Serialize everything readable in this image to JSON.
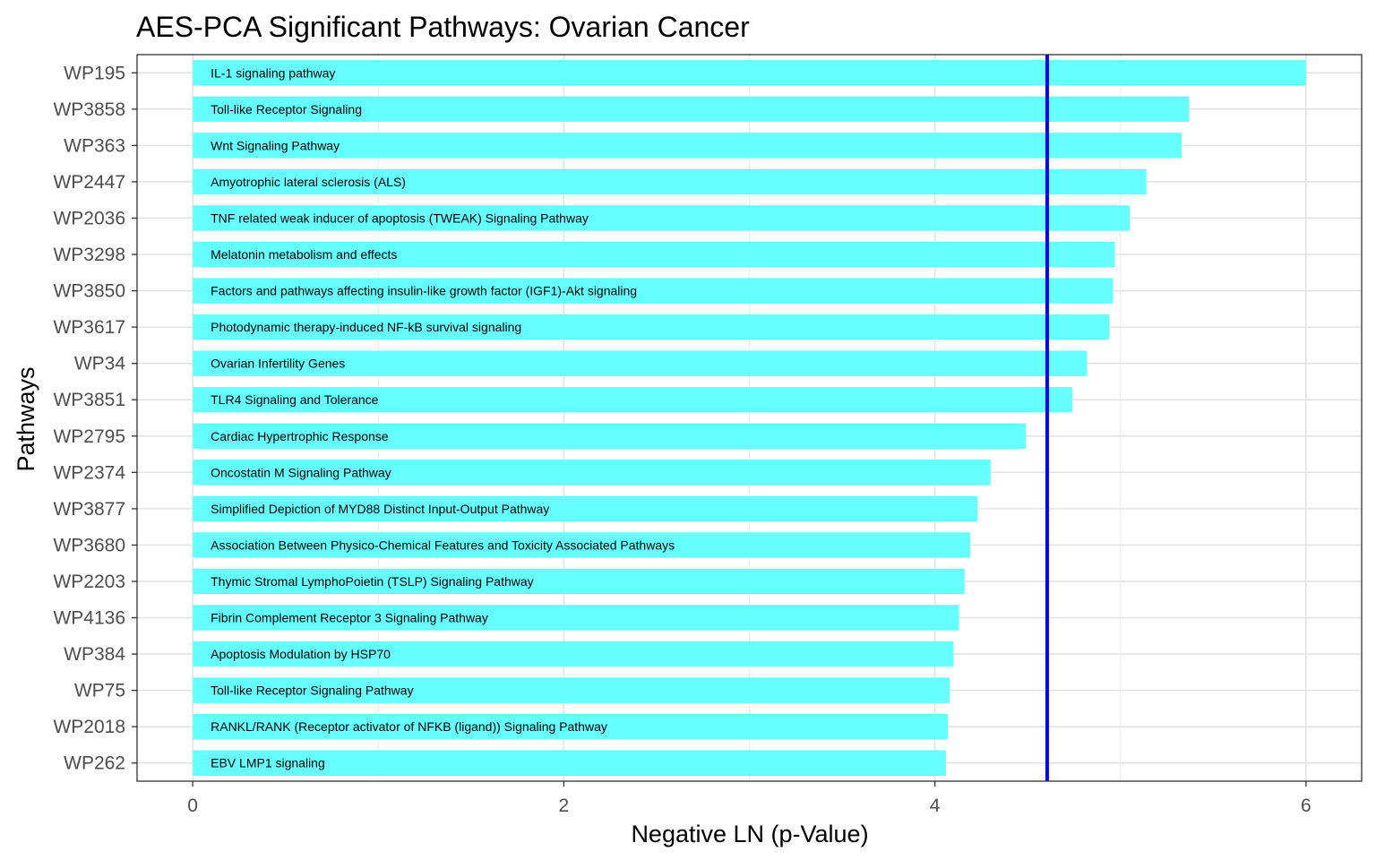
{
  "chart_data": {
    "type": "bar",
    "orientation": "horizontal",
    "title": "AES-PCA Significant Pathways: Ovarian Cancer",
    "xlabel": "Negative LN (p-Value)",
    "ylabel": "Pathways",
    "xlim": [
      -0.3,
      6.3
    ],
    "xticks": [
      "0",
      "2",
      "4",
      "6"
    ],
    "xtick_values": [
      0,
      2,
      4,
      6
    ],
    "grid": true,
    "bar_color": "#66ffff",
    "threshold": {
      "value": 4.605,
      "color": "#0000ff"
    },
    "categories": [
      "WP195",
      "WP3858",
      "WP363",
      "WP2447",
      "WP2036",
      "WP3298",
      "WP3850",
      "WP3617",
      "WP34",
      "WP3851",
      "WP2795",
      "WP2374",
      "WP3877",
      "WP3680",
      "WP2203",
      "WP4136",
      "WP384",
      "WP75",
      "WP2018",
      "WP262"
    ],
    "bar_labels": [
      "IL-1 signaling pathway",
      "Toll-like Receptor Signaling",
      "Wnt Signaling Pathway",
      "Amyotrophic lateral sclerosis (ALS)",
      "TNF related weak inducer of apoptosis (TWEAK) Signaling Pathway",
      "Melatonin metabolism and effects",
      "Factors and pathways affecting insulin-like growth factor (IGF1)-Akt signaling",
      "Photodynamic therapy-induced NF-kB survival signaling",
      "Ovarian Infertility Genes",
      "TLR4 Signaling and Tolerance",
      "Cardiac Hypertrophic Response",
      "Oncostatin M Signaling Pathway",
      "Simplified Depiction of MYD88 Distinct Input-Output Pathway",
      "Association Between Physico-Chemical Features and Toxicity Associated Pathways",
      "Thymic Stromal LymphoPoietin (TSLP) Signaling Pathway",
      "Fibrin Complement Receptor 3 Signaling Pathway",
      "Apoptosis Modulation by HSP70",
      "Toll-like Receptor Signaling Pathway",
      "RANKL/RANK (Receptor activator of NFKB (ligand)) Signaling Pathway",
      "EBV LMP1 signaling"
    ],
    "values": [
      6.0,
      5.37,
      5.33,
      5.14,
      5.05,
      4.97,
      4.96,
      4.94,
      4.82,
      4.74,
      4.49,
      4.3,
      4.23,
      4.19,
      4.16,
      4.13,
      4.1,
      4.08,
      4.07,
      4.06
    ]
  }
}
